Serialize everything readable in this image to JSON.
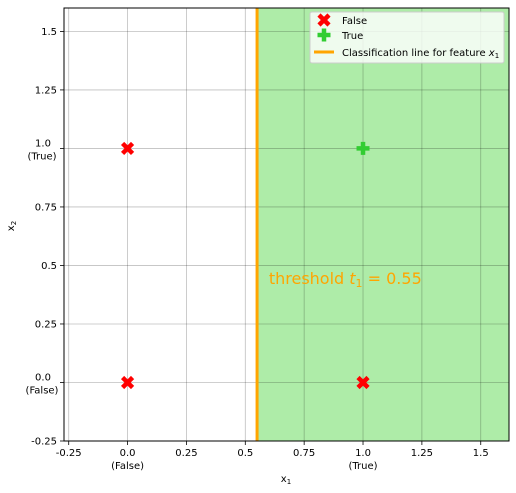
{
  "chart_data": {
    "type": "scatter",
    "title": "",
    "xlabel_main": "x",
    "xlabel_sub": "1",
    "ylabel_main": "x",
    "ylabel_sub": "2",
    "xlim": [
      -0.27,
      1.62
    ],
    "ylim": [
      -0.25,
      1.6
    ],
    "grid": true,
    "x_ticks": [
      {
        "value": -0.25,
        "label": "-0.25",
        "sub": ""
      },
      {
        "value": 0.0,
        "label": "0.0",
        "sub": "(False)"
      },
      {
        "value": 0.25,
        "label": "0.25",
        "sub": ""
      },
      {
        "value": 0.5,
        "label": "0.5",
        "sub": ""
      },
      {
        "value": 0.75,
        "label": "0.75",
        "sub": ""
      },
      {
        "value": 1.0,
        "label": "1.0",
        "sub": "(True)"
      },
      {
        "value": 1.25,
        "label": "1.25",
        "sub": ""
      },
      {
        "value": 1.5,
        "label": "1.5",
        "sub": ""
      }
    ],
    "y_ticks": [
      {
        "value": -0.25,
        "label": "-0.25",
        "sub": ""
      },
      {
        "value": 0.0,
        "label": "0.0",
        "sub": "(False)"
      },
      {
        "value": 0.25,
        "label": "0.25",
        "sub": ""
      },
      {
        "value": 0.5,
        "label": "0.5",
        "sub": ""
      },
      {
        "value": 0.75,
        "label": "0.75",
        "sub": ""
      },
      {
        "value": 1.0,
        "label": "1.0",
        "sub": "(True)"
      },
      {
        "value": 1.25,
        "label": "1.25",
        "sub": ""
      },
      {
        "value": 1.5,
        "label": "1.5",
        "sub": ""
      }
    ],
    "series": [
      {
        "name": "False",
        "marker": "x",
        "color": "#ff0000",
        "points": [
          [
            0,
            0
          ],
          [
            0,
            1
          ],
          [
            1,
            0
          ]
        ]
      },
      {
        "name": "True",
        "marker": "plus",
        "color": "#32cd32",
        "points": [
          [
            1,
            1
          ]
        ]
      }
    ],
    "threshold": {
      "value": 0.55,
      "color": "#ffa500",
      "legend_label": "Classification line for feature ",
      "legend_var": "x",
      "legend_sub": "1",
      "annot_prefix": "threshold ",
      "annot_var": "t",
      "annot_sub": "1",
      "annot_suffix": " = 0.55",
      "annot_at": [
        0.6,
        0.42
      ]
    },
    "region": {
      "color": "#aeeca8",
      "from_x": 0.55
    },
    "legend_placement": "top-right"
  }
}
